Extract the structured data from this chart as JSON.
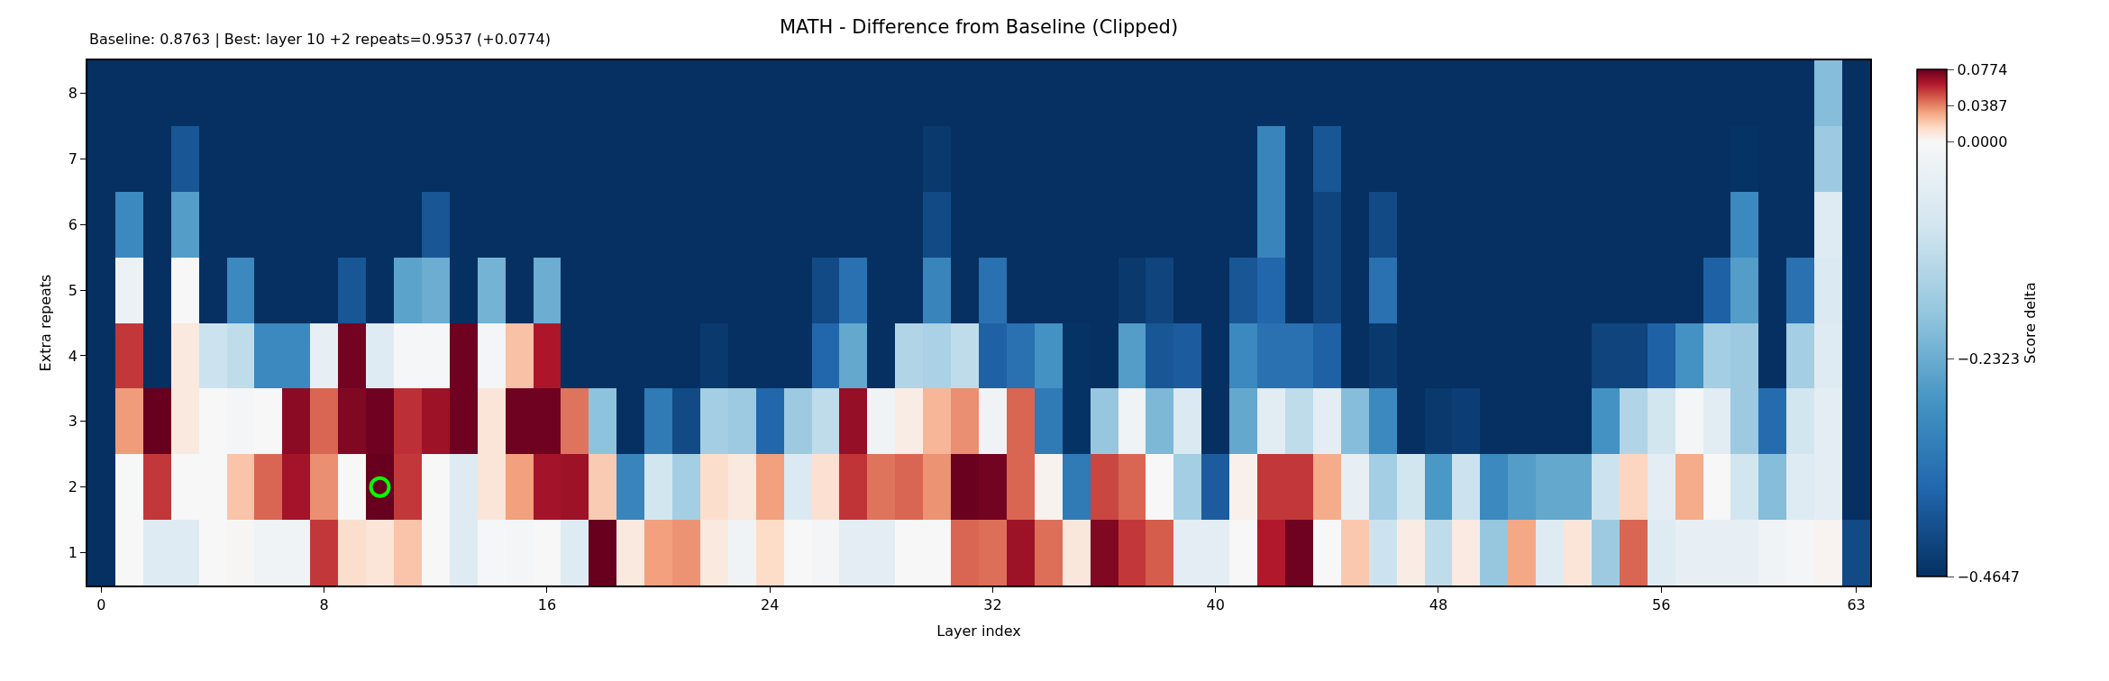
{
  "chart_data": {
    "type": "heatmap",
    "title": "MATH - Difference from Baseline (Clipped)",
    "xlabel": "Layer index",
    "ylabel": "Extra repeats",
    "clabel": "Score delta",
    "annotations": [
      "Baseline: 0.8763 | Best: layer 10 +2 repeats=0.9537 (+0.0774)"
    ],
    "categories": [
      "0",
      null,
      null,
      null,
      null,
      null,
      null,
      null,
      "8",
      null,
      null,
      null,
      null,
      null,
      null,
      null,
      "16",
      null,
      null,
      null,
      null,
      null,
      null,
      null,
      "24",
      null,
      null,
      null,
      null,
      null,
      null,
      null,
      "32",
      null,
      null,
      null,
      null,
      null,
      null,
      null,
      "40",
      null,
      null,
      null,
      null,
      null,
      null,
      null,
      "48",
      null,
      null,
      null,
      null,
      null,
      null,
      null,
      "56",
      null,
      null,
      null,
      null,
      null,
      null,
      "63"
    ],
    "y_categories": [
      "8",
      "7",
      "6",
      "5",
      "4",
      "3",
      "2",
      "1"
    ],
    "cells": [
      [
        -0.4647,
        -0.4647,
        -0.4647,
        -0.4647,
        -0.4647,
        -0.4647,
        -0.4647,
        -0.4647,
        -0.4647,
        -0.4647,
        -0.4647,
        -0.4647,
        -0.4647,
        -0.4647,
        -0.4647,
        -0.4647,
        -0.4647,
        -0.4647,
        -0.4647,
        -0.4647,
        -0.4647,
        -0.4647,
        -0.4647,
        -0.4647,
        -0.4647,
        -0.4647,
        -0.4647,
        -0.4647,
        -0.4647,
        -0.4647,
        -0.4647,
        -0.4647,
        -0.4647,
        -0.4647,
        -0.4647,
        -0.4647,
        -0.4647,
        -0.4647,
        -0.4647,
        -0.4647,
        -0.4647,
        -0.4647,
        -0.4647,
        -0.4647,
        -0.4647,
        -0.4647,
        -0.4647,
        -0.4647,
        -0.4647,
        -0.4647,
        -0.4647,
        -0.4647,
        -0.4647,
        -0.4647,
        -0.4647,
        -0.4647,
        -0.4647,
        -0.4647,
        -0.4647,
        -0.4647,
        -0.4647,
        -0.4647,
        -0.2,
        -0.4647
      ],
      [
        -0.4647,
        -0.4647,
        -0.4647,
        -0.4,
        -0.4647,
        -0.4647,
        -0.4647,
        -0.4647,
        -0.4647,
        -0.4647,
        -0.4647,
        -0.4647,
        -0.4647,
        -0.4647,
        -0.4647,
        -0.4647,
        -0.4647,
        -0.4647,
        -0.4647,
        -0.4647,
        -0.4647,
        -0.4647,
        -0.4647,
        -0.4647,
        -0.4647,
        -0.4647,
        -0.4647,
        -0.4647,
        -0.4647,
        -0.4647,
        -0.45,
        -0.4647,
        -0.4647,
        -0.4647,
        -0.4647,
        -0.4647,
        -0.4647,
        -0.4647,
        -0.4647,
        -0.4647,
        -0.4647,
        -0.4647,
        -0.31,
        -0.4647,
        -0.4,
        -0.4647,
        -0.4647,
        -0.4647,
        -0.4647,
        -0.4647,
        -0.4647,
        -0.4647,
        -0.4647,
        -0.4647,
        -0.4647,
        -0.4647,
        -0.4647,
        -0.4647,
        -0.4647,
        -0.46,
        -0.4647,
        -0.4647,
        -0.17,
        -0.4647
      ],
      [
        -0.4647,
        -0.3,
        -0.4647,
        -0.26,
        -0.4647,
        -0.4647,
        -0.4647,
        -0.4647,
        -0.4647,
        -0.4647,
        -0.4647,
        -0.4647,
        -0.4,
        -0.4647,
        -0.4647,
        -0.4647,
        -0.4647,
        -0.4647,
        -0.4647,
        -0.4647,
        -0.4647,
        -0.4647,
        -0.4647,
        -0.4647,
        -0.4647,
        -0.4647,
        -0.4647,
        -0.4647,
        -0.4647,
        -0.4647,
        -0.42,
        -0.4647,
        -0.4647,
        -0.4647,
        -0.4647,
        -0.4647,
        -0.4647,
        -0.4647,
        -0.4647,
        -0.4647,
        -0.4647,
        -0.4647,
        -0.31,
        -0.4647,
        -0.43,
        -0.4647,
        -0.42,
        -0.4647,
        -0.4647,
        -0.4647,
        -0.4647,
        -0.4647,
        -0.4647,
        -0.4647,
        -0.4647,
        -0.4647,
        -0.4647,
        -0.4647,
        -0.4647,
        -0.3,
        -0.4647,
        -0.4647,
        -0.06,
        -0.4647
      ],
      [
        -0.4647,
        -0.03,
        -0.4647,
        0.0,
        -0.4647,
        -0.3,
        -0.4647,
        -0.4647,
        -0.4647,
        -0.4,
        -0.4647,
        -0.25,
        -0.23,
        -0.4647,
        -0.22,
        -0.4647,
        -0.23,
        -0.4647,
        -0.4647,
        -0.4647,
        -0.4647,
        -0.4647,
        -0.4647,
        -0.4647,
        -0.4647,
        -0.4647,
        -0.42,
        -0.35,
        -0.4647,
        -0.4647,
        -0.31,
        -0.4647,
        -0.35,
        -0.4647,
        -0.4647,
        -0.4647,
        -0.4647,
        -0.45,
        -0.43,
        -0.4647,
        -0.4647,
        -0.4,
        -0.37,
        -0.4647,
        -0.43,
        -0.4647,
        -0.35,
        -0.4647,
        -0.4647,
        -0.4647,
        -0.4647,
        -0.4647,
        -0.4647,
        -0.4647,
        -0.4647,
        -0.4647,
        -0.4647,
        -0.4647,
        -0.38,
        -0.26,
        -0.4647,
        -0.35,
        -0.07,
        -0.4647
      ],
      [
        -0.4647,
        0.055,
        -0.4647,
        0.008,
        -0.1,
        -0.12,
        -0.3,
        -0.3,
        -0.04,
        0.075,
        -0.06,
        -0.005,
        -0.005,
        0.076,
        -0.01,
        0.023,
        0.063,
        -0.4647,
        -0.4647,
        -0.4647,
        -0.4647,
        -0.4647,
        -0.45,
        -0.4647,
        -0.4647,
        -0.4647,
        -0.37,
        -0.24,
        -0.4647,
        -0.14,
        -0.15,
        -0.12,
        -0.38,
        -0.35,
        -0.28,
        -0.46,
        -0.4647,
        -0.26,
        -0.4,
        -0.39,
        -0.4647,
        -0.3,
        -0.35,
        -0.35,
        -0.38,
        -0.4647,
        -0.45,
        -0.4647,
        -0.4647,
        -0.4647,
        -0.4647,
        -0.4647,
        -0.4647,
        -0.4647,
        -0.43,
        -0.43,
        -0.38,
        -0.28,
        -0.16,
        -0.17,
        -0.4647,
        -0.16,
        -0.06,
        -0.4647
      ],
      [
        -0.4647,
        0.033,
        0.0774,
        0.008,
        0.0,
        -0.01,
        0.0,
        0.07,
        0.045,
        0.072,
        0.076,
        0.057,
        0.066,
        0.076,
        0.01,
        0.076,
        0.076,
        0.042,
        -0.19,
        -0.4647,
        -0.33,
        -0.42,
        -0.16,
        -0.17,
        -0.37,
        -0.17,
        -0.12,
        0.068,
        -0.02,
        0.006,
        0.026,
        0.036,
        -0.02,
        0.045,
        -0.33,
        -0.46,
        -0.18,
        -0.02,
        -0.21,
        -0.07,
        -0.4647,
        -0.24,
        -0.055,
        -0.12,
        -0.05,
        -0.2,
        -0.3,
        -0.4647,
        -0.45,
        -0.44,
        -0.4647,
        -0.4647,
        -0.4647,
        -0.4647,
        -0.28,
        -0.14,
        -0.09,
        -0.01,
        -0.055,
        -0.17,
        -0.36,
        -0.09,
        -0.05,
        -0.4647
      ],
      [
        -0.4647,
        0.0,
        0.055,
        0.0,
        0.0,
        0.022,
        0.045,
        0.065,
        0.036,
        0.0,
        0.0774,
        0.055,
        0.0,
        -0.06,
        0.01,
        0.032,
        0.065,
        0.066,
        0.02,
        -0.31,
        -0.09,
        -0.16,
        0.014,
        0.008,
        0.032,
        -0.07,
        0.012,
        0.056,
        0.042,
        0.045,
        0.035,
        0.077,
        0.075,
        0.045,
        0.003,
        -0.33,
        0.052,
        0.045,
        0.0,
        -0.16,
        -0.39,
        0.004,
        0.055,
        0.055,
        0.029,
        -0.04,
        -0.16,
        -0.09,
        -0.27,
        -0.1,
        -0.3,
        -0.26,
        -0.24,
        -0.24,
        -0.1,
        0.017,
        -0.05,
        0.029,
        0.0,
        -0.09,
        -0.2,
        -0.06,
        -0.05,
        -0.4647
      ],
      [
        -0.4647,
        0.0,
        -0.06,
        -0.06,
        0.0,
        0.001,
        -0.02,
        -0.02,
        0.055,
        0.014,
        0.01,
        0.022,
        0.0,
        -0.06,
        -0.005,
        -0.01,
        0.0,
        -0.06,
        0.0774,
        0.008,
        0.032,
        0.035,
        0.008,
        -0.02,
        0.015,
        0.0,
        -0.01,
        -0.05,
        -0.05,
        0.0,
        0.0,
        0.045,
        0.043,
        0.066,
        0.043,
        0.009,
        0.072,
        0.055,
        0.047,
        -0.05,
        -0.05,
        0.0,
        0.062,
        0.076,
        0.0,
        0.021,
        -0.1,
        0.006,
        -0.12,
        0.007,
        -0.18,
        0.03,
        -0.06,
        0.01,
        -0.17,
        0.045,
        -0.06,
        -0.04,
        -0.04,
        -0.04,
        -0.02,
        -0.01,
        0.002,
        -0.42
      ]
    ],
    "clim": [
      -0.4647,
      0.0774
    ],
    "cticks": [
      {
        "value": -0.4647,
        "label": "−0.4647"
      },
      {
        "value": -0.2323,
        "label": "−0.2323"
      },
      {
        "value": 0.0,
        "label": "0.0000"
      },
      {
        "value": 0.0387,
        "label": "0.0387"
      },
      {
        "value": 0.0774,
        "label": "0.0774"
      }
    ],
    "series": [
      {
        "type": "scatter",
        "color": "#00ff00",
        "marker": "circle",
        "values": [
          null,
          null,
          null,
          null,
          null,
          null,
          null,
          null,
          null,
          null,
          6,
          null,
          null,
          null,
          null,
          null,
          null,
          null,
          null,
          null,
          null,
          null,
          null,
          null,
          null,
          null,
          null,
          null,
          null,
          null,
          null,
          null,
          null,
          null,
          null,
          null,
          null,
          null,
          null,
          null,
          null,
          null,
          null,
          null,
          null,
          null,
          null,
          null,
          null,
          null,
          null,
          null,
          null,
          null,
          null,
          null,
          null,
          null,
          null,
          null,
          null,
          null,
          null,
          null
        ]
      }
    ]
  }
}
